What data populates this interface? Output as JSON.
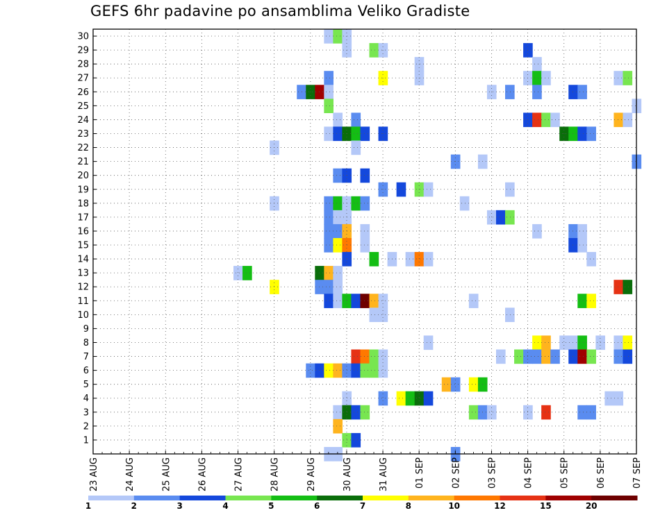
{
  "chart_data": {
    "type": "heatmap",
    "title": "GEFS 6hr padavine po ansamblima Veliko Gradiste",
    "xlabel": "",
    "ylabel": "",
    "x_ticks": [
      "23 AUG",
      "24 AUG",
      "25 AUG",
      "26 AUG",
      "27 AUG",
      "28 AUG",
      "29 AUG",
      "30 AUG",
      "31 AUG",
      "01 SEP",
      "02 SEP",
      "03 SEP",
      "04 SEP",
      "05 SEP",
      "06 SEP",
      "07 SEP"
    ],
    "y_ticks": [
      "1",
      "2",
      "3",
      "4",
      "5",
      "6",
      "7",
      "8",
      "9",
      "10",
      "11",
      "12",
      "13",
      "14",
      "15",
      "16",
      "17",
      "18",
      "19",
      "20",
      "21",
      "22",
      "23",
      "24",
      "25",
      "26",
      "27",
      "28",
      "29",
      "30"
    ],
    "ylim": [
      0,
      30
    ],
    "grid": true,
    "legend": {
      "position": "bottom",
      "levels": [
        "1",
        "2",
        "3",
        "4",
        "5",
        "6",
        "7",
        "8",
        "10",
        "12",
        "15",
        "20"
      ],
      "colors": [
        "#b4c8f8",
        "#5a8cf0",
        "#1448dc",
        "#78e650",
        "#14be14",
        "#0a6e0a",
        "#ffff00",
        "#ffb41e",
        "#ff7800",
        "#e63214",
        "#a00000",
        "#6e0000"
      ]
    },
    "cells": [
      {
        "t": "29.5 AUG",
        "m": 30,
        "lvl": 1
      },
      {
        "t": "29.75 AUG",
        "m": 30,
        "lvl": 4
      },
      {
        "t": "30 AUG",
        "m": 30,
        "lvl": 1
      },
      {
        "t": "30 AUG",
        "m": 29,
        "lvl": 1
      },
      {
        "t": "30.75 AUG",
        "m": 29,
        "lvl": 4
      },
      {
        "t": "31 AUG",
        "m": 29,
        "lvl": 1
      },
      {
        "t": "04 SEP",
        "m": 29,
        "lvl": 3
      },
      {
        "t": "01 SEP",
        "m": 28,
        "lvl": 1
      },
      {
        "t": "04.25 SEP",
        "m": 28,
        "lvl": 1
      },
      {
        "t": "29.5 AUG",
        "m": 27,
        "lvl": 2
      },
      {
        "t": "31 AUG",
        "m": 27,
        "lvl": 7
      },
      {
        "t": "01 SEP",
        "m": 27,
        "lvl": 1
      },
      {
        "t": "04 SEP",
        "m": 27,
        "lvl": 1
      },
      {
        "t": "04.25 SEP",
        "m": 27,
        "lvl": 5
      },
      {
        "t": "04.5 SEP",
        "m": 27,
        "lvl": 1
      },
      {
        "t": "06.5 SEP",
        "m": 27,
        "lvl": 1
      },
      {
        "t": "06.75 SEP",
        "m": 27,
        "lvl": 4
      },
      {
        "t": "28.75 AUG",
        "m": 26,
        "lvl": 2
      },
      {
        "t": "29 AUG",
        "m": 26,
        "lvl": 6
      },
      {
        "t": "29.25 AUG",
        "m": 26,
        "lvl": 11
      },
      {
        "t": "29.5 AUG",
        "m": 26,
        "lvl": 1
      },
      {
        "t": "03 SEP",
        "m": 26,
        "lvl": 1
      },
      {
        "t": "03.5 SEP",
        "m": 26,
        "lvl": 2
      },
      {
        "t": "04.25 SEP",
        "m": 26,
        "lvl": 2
      },
      {
        "t": "05.25 SEP",
        "m": 26,
        "lvl": 3
      },
      {
        "t": "05.5 SEP",
        "m": 26,
        "lvl": 2
      },
      {
        "t": "29.5 AUG",
        "m": 25,
        "lvl": 4
      },
      {
        "t": "07 SEP",
        "m": 25,
        "lvl": 1
      },
      {
        "t": "29.75 AUG",
        "m": 24,
        "lvl": 1
      },
      {
        "t": "30.25 AUG",
        "m": 24,
        "lvl": 2
      },
      {
        "t": "04 SEP",
        "m": 24,
        "lvl": 3
      },
      {
        "t": "04.25 SEP",
        "m": 24,
        "lvl": 10
      },
      {
        "t": "04.5 SEP",
        "m": 24,
        "lvl": 4
      },
      {
        "t": "04.75 SEP",
        "m": 24,
        "lvl": 1
      },
      {
        "t": "06.5 SEP",
        "m": 24,
        "lvl": 8
      },
      {
        "t": "06.75 SEP",
        "m": 24,
        "lvl": 1
      },
      {
        "t": "29.5 AUG",
        "m": 23,
        "lvl": 1
      },
      {
        "t": "29.75 AUG",
        "m": 23,
        "lvl": 3
      },
      {
        "t": "30 AUG",
        "m": 23,
        "lvl": 6
      },
      {
        "t": "30.25 AUG",
        "m": 23,
        "lvl": 5
      },
      {
        "t": "30.5 AUG",
        "m": 23,
        "lvl": 3
      },
      {
        "t": "31 AUG",
        "m": 23,
        "lvl": 3
      },
      {
        "t": "05 SEP",
        "m": 23,
        "lvl": 6
      },
      {
        "t": "05.25 SEP",
        "m": 23,
        "lvl": 5
      },
      {
        "t": "05.5 SEP",
        "m": 23,
        "lvl": 3
      },
      {
        "t": "05.75 SEP",
        "m": 23,
        "lvl": 2
      },
      {
        "t": "28 AUG",
        "m": 22,
        "lvl": 1
      },
      {
        "t": "30.25 AUG",
        "m": 22,
        "lvl": 1
      },
      {
        "t": "02 SEP",
        "m": 21,
        "lvl": 2
      },
      {
        "t": "02.75 SEP",
        "m": 21,
        "lvl": 1
      },
      {
        "t": "07 SEP",
        "m": 21,
        "lvl": 2
      },
      {
        "t": "29.75 AUG",
        "m": 20,
        "lvl": 2
      },
      {
        "t": "30 AUG",
        "m": 20,
        "lvl": 3
      },
      {
        "t": "30.5 AUG",
        "m": 20,
        "lvl": 3
      },
      {
        "t": "31 AUG",
        "m": 19,
        "lvl": 2
      },
      {
        "t": "31.5 AUG",
        "m": 19,
        "lvl": 3
      },
      {
        "t": "01 SEP",
        "m": 19,
        "lvl": 4
      },
      {
        "t": "01.25 SEP",
        "m": 19,
        "lvl": 1
      },
      {
        "t": "03.5 SEP",
        "m": 19,
        "lvl": 1
      },
      {
        "t": "28 AUG",
        "m": 18,
        "lvl": 1
      },
      {
        "t": "29.5 AUG",
        "m": 18,
        "lvl": 2
      },
      {
        "t": "29.75 AUG",
        "m": 18,
        "lvl": 5
      },
      {
        "t": "30 AUG",
        "m": 18,
        "lvl": 1
      },
      {
        "t": "30.25 AUG",
        "m": 18,
        "lvl": 5
      },
      {
        "t": "30.5 AUG",
        "m": 18,
        "lvl": 2
      },
      {
        "t": "02.25 SEP",
        "m": 18,
        "lvl": 1
      },
      {
        "t": "29.5 AUG",
        "m": 17,
        "lvl": 2
      },
      {
        "t": "29.75 AUG",
        "m": 17,
        "lvl": 1
      },
      {
        "t": "30 AUG",
        "m": 17,
        "lvl": 1
      },
      {
        "t": "03 SEP",
        "m": 17,
        "lvl": 1
      },
      {
        "t": "03.25 SEP",
        "m": 17,
        "lvl": 3
      },
      {
        "t": "03.5 SEP",
        "m": 17,
        "lvl": 4
      },
      {
        "t": "29.5 AUG",
        "m": 16,
        "lvl": 2
      },
      {
        "t": "29.75 AUG",
        "m": 16,
        "lvl": 2
      },
      {
        "t": "30 AUG",
        "m": 16,
        "lvl": 8
      },
      {
        "t": "30.5 AUG",
        "m": 16,
        "lvl": 1
      },
      {
        "t": "04.25 SEP",
        "m": 16,
        "lvl": 1
      },
      {
        "t": "05.25 SEP",
        "m": 16,
        "lvl": 2
      },
      {
        "t": "05.5 SEP",
        "m": 16,
        "lvl": 1
      },
      {
        "t": "29.5 AUG",
        "m": 15,
        "lvl": 2
      },
      {
        "t": "29.75 AUG",
        "m": 15,
        "lvl": 7
      },
      {
        "t": "30 AUG",
        "m": 15,
        "lvl": 9
      },
      {
        "t": "30.5 AUG",
        "m": 15,
        "lvl": 1
      },
      {
        "t": "05.25 SEP",
        "m": 15,
        "lvl": 3
      },
      {
        "t": "05.5 SEP",
        "m": 15,
        "lvl": 1
      },
      {
        "t": "30 AUG",
        "m": 14,
        "lvl": 3
      },
      {
        "t": "30.75 AUG",
        "m": 14,
        "lvl": 5
      },
      {
        "t": "31.25 AUG",
        "m": 14,
        "lvl": 1
      },
      {
        "t": "31.75 AUG",
        "m": 14,
        "lvl": 1
      },
      {
        "t": "01 SEP",
        "m": 14,
        "lvl": 9
      },
      {
        "t": "01.25 SEP",
        "m": 14,
        "lvl": 1
      },
      {
        "t": "05.75 SEP",
        "m": 14,
        "lvl": 1
      },
      {
        "t": "27 AUG",
        "m": 13,
        "lvl": 1
      },
      {
        "t": "27.25 AUG",
        "m": 13,
        "lvl": 5
      },
      {
        "t": "29.25 AUG",
        "m": 13,
        "lvl": 6
      },
      {
        "t": "29.5 AUG",
        "m": 13,
        "lvl": 8
      },
      {
        "t": "29.75 AUG",
        "m": 13,
        "lvl": 1
      },
      {
        "t": "28 AUG",
        "m": 12,
        "lvl": 7
      },
      {
        "t": "29.25 AUG",
        "m": 12,
        "lvl": 2
      },
      {
        "t": "29.5 AUG",
        "m": 12,
        "lvl": 2
      },
      {
        "t": "29.75 AUG",
        "m": 12,
        "lvl": 1
      },
      {
        "t": "06.5 SEP",
        "m": 12,
        "lvl": 10
      },
      {
        "t": "06.75 SEP",
        "m": 12,
        "lvl": 6
      },
      {
        "t": "29.5 AUG",
        "m": 11,
        "lvl": 3
      },
      {
        "t": "29.75 AUG",
        "m": 11,
        "lvl": 1
      },
      {
        "t": "30 AUG",
        "m": 11,
        "lvl": 5
      },
      {
        "t": "30.25 AUG",
        "m": 11,
        "lvl": 3
      },
      {
        "t": "30.5 AUG",
        "m": 11,
        "lvl": 12
      },
      {
        "t": "30.75 AUG",
        "m": 11,
        "lvl": 8
      },
      {
        "t": "31 AUG",
        "m": 11,
        "lvl": 1
      },
      {
        "t": "02.5 SEP",
        "m": 11,
        "lvl": 1
      },
      {
        "t": "05.5 SEP",
        "m": 11,
        "lvl": 5
      },
      {
        "t": "05.75 SEP",
        "m": 11,
        "lvl": 7
      },
      {
        "t": "30.75 AUG",
        "m": 10,
        "lvl": 1
      },
      {
        "t": "31 AUG",
        "m": 10,
        "lvl": 1
      },
      {
        "t": "03.5 SEP",
        "m": 10,
        "lvl": 1
      },
      {
        "t": "01.25 SEP",
        "m": 8,
        "lvl": 1
      },
      {
        "t": "04.25 SEP",
        "m": 8,
        "lvl": 7
      },
      {
        "t": "04.5 SEP",
        "m": 8,
        "lvl": 8
      },
      {
        "t": "05 SEP",
        "m": 8,
        "lvl": 1
      },
      {
        "t": "05.25 SEP",
        "m": 8,
        "lvl": 1
      },
      {
        "t": "05.5 SEP",
        "m": 8,
        "lvl": 5
      },
      {
        "t": "06 SEP",
        "m": 8,
        "lvl": 1
      },
      {
        "t": "06.5 SEP",
        "m": 8,
        "lvl": 1
      },
      {
        "t": "06.75 SEP",
        "m": 8,
        "lvl": 7
      },
      {
        "t": "30.25 AUG",
        "m": 7,
        "lvl": 10
      },
      {
        "t": "30.5 AUG",
        "m": 7,
        "lvl": 9
      },
      {
        "t": "30.75 AUG",
        "m": 7,
        "lvl": 4
      },
      {
        "t": "31 AUG",
        "m": 7,
        "lvl": 1
      },
      {
        "t": "03.25 SEP",
        "m": 7,
        "lvl": 1
      },
      {
        "t": "03.75 SEP",
        "m": 7,
        "lvl": 4
      },
      {
        "t": "04 SEP",
        "m": 7,
        "lvl": 2
      },
      {
        "t": "04.25 SEP",
        "m": 7,
        "lvl": 2
      },
      {
        "t": "04.5 SEP",
        "m": 7,
        "lvl": 8
      },
      {
        "t": "04.75 SEP",
        "m": 7,
        "lvl": 2
      },
      {
        "t": "05.25 SEP",
        "m": 7,
        "lvl": 3
      },
      {
        "t": "05.5 SEP",
        "m": 7,
        "lvl": 11
      },
      {
        "t": "05.75 SEP",
        "m": 7,
        "lvl": 4
      },
      {
        "t": "06.5 SEP",
        "m": 7,
        "lvl": 2
      },
      {
        "t": "06.75 SEP",
        "m": 7,
        "lvl": 3
      },
      {
        "t": "29 AUG",
        "m": 6,
        "lvl": 2
      },
      {
        "t": "29.25 AUG",
        "m": 6,
        "lvl": 3
      },
      {
        "t": "29.5 AUG",
        "m": 6,
        "lvl": 7
      },
      {
        "t": "29.75 AUG",
        "m": 6,
        "lvl": 8
      },
      {
        "t": "30 AUG",
        "m": 6,
        "lvl": 2
      },
      {
        "t": "30.25 AUG",
        "m": 6,
        "lvl": 3
      },
      {
        "t": "30.5 AUG",
        "m": 6,
        "lvl": 4
      },
      {
        "t": "30.75 AUG",
        "m": 6,
        "lvl": 4
      },
      {
        "t": "31 AUG",
        "m": 6,
        "lvl": 1
      },
      {
        "t": "01.75 SEP",
        "m": 5,
        "lvl": 8
      },
      {
        "t": "02 SEP",
        "m": 5,
        "lvl": 2
      },
      {
        "t": "02.5 SEP",
        "m": 5,
        "lvl": 7
      },
      {
        "t": "02.75 SEP",
        "m": 5,
        "lvl": 5
      },
      {
        "t": "30 AUG",
        "m": 4,
        "lvl": 1
      },
      {
        "t": "31 AUG",
        "m": 4,
        "lvl": 2
      },
      {
        "t": "31.5 AUG",
        "m": 4,
        "lvl": 7
      },
      {
        "t": "31.75 AUG",
        "m": 4,
        "lvl": 5
      },
      {
        "t": "01 SEP",
        "m": 4,
        "lvl": 6
      },
      {
        "t": "01.25 SEP",
        "m": 4,
        "lvl": 3
      },
      {
        "t": "06.25 SEP",
        "m": 4,
        "lvl": 1
      },
      {
        "t": "06.5 SEP",
        "m": 4,
        "lvl": 1
      },
      {
        "t": "29.75 AUG",
        "m": 3,
        "lvl": 1
      },
      {
        "t": "30 AUG",
        "m": 3,
        "lvl": 6
      },
      {
        "t": "30.25 AUG",
        "m": 3,
        "lvl": 3
      },
      {
        "t": "30.5 AUG",
        "m": 3,
        "lvl": 4
      },
      {
        "t": "02.5 SEP",
        "m": 3,
        "lvl": 4
      },
      {
        "t": "02.75 SEP",
        "m": 3,
        "lvl": 2
      },
      {
        "t": "03 SEP",
        "m": 3,
        "lvl": 1
      },
      {
        "t": "04 SEP",
        "m": 3,
        "lvl": 1
      },
      {
        "t": "04.5 SEP",
        "m": 3,
        "lvl": 10
      },
      {
        "t": "05.5 SEP",
        "m": 3,
        "lvl": 2
      },
      {
        "t": "05.75 SEP",
        "m": 3,
        "lvl": 2
      },
      {
        "t": "29.75 AUG",
        "m": 2,
        "lvl": 8
      },
      {
        "t": "30 AUG",
        "m": 1,
        "lvl": 4
      },
      {
        "t": "30.25 AUG",
        "m": 1,
        "lvl": 3
      },
      {
        "t": "29.5 AUG",
        "m": 0,
        "lvl": 1
      },
      {
        "t": "29.75 AUG",
        "m": 0,
        "lvl": 1
      },
      {
        "t": "02 SEP",
        "m": 0,
        "lvl": 2
      }
    ]
  }
}
